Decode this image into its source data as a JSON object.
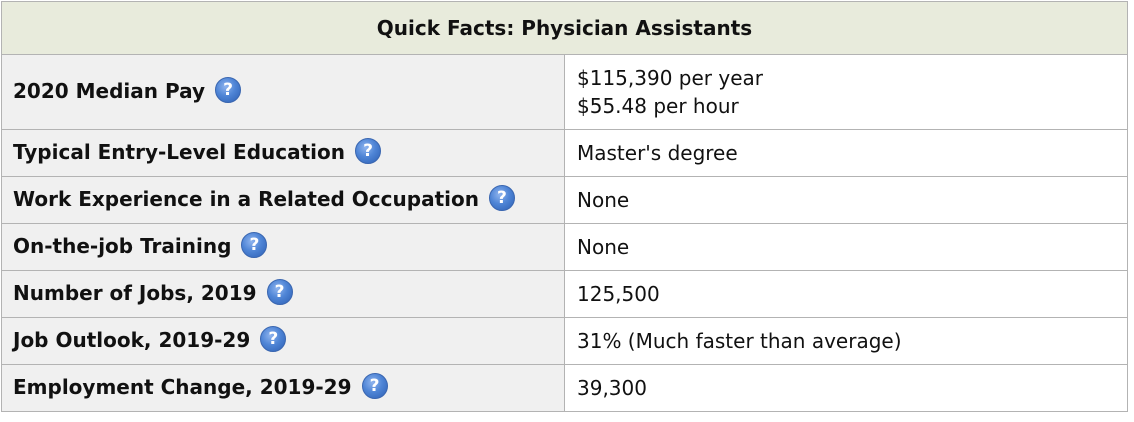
{
  "table": {
    "title": "Quick Facts: Physician Assistants",
    "help_icon_glyph": "?",
    "rows": [
      {
        "label": "2020 Median Pay",
        "value_lines": [
          "$115,390 per year",
          "$55.48 per hour"
        ]
      },
      {
        "label": "Typical Entry-Level Education",
        "value_lines": [
          "Master's degree"
        ]
      },
      {
        "label": "Work Experience in a Related Occupation",
        "value_lines": [
          "None"
        ]
      },
      {
        "label": "On-the-job Training",
        "value_lines": [
          "None"
        ]
      },
      {
        "label": "Number of Jobs, 2019",
        "value_lines": [
          "125,500"
        ]
      },
      {
        "label": "Job Outlook, 2019-29",
        "value_lines": [
          "31% (Much faster than average)"
        ]
      },
      {
        "label": "Employment Change, 2019-29",
        "value_lines": [
          "39,300"
        ]
      }
    ],
    "colors": {
      "header_bg": "#e8ebdc",
      "label_bg": "#f0f0f0",
      "border": "#b3b3b3",
      "icon": "#4f85d6"
    },
    "icon_name": "help-icon"
  }
}
